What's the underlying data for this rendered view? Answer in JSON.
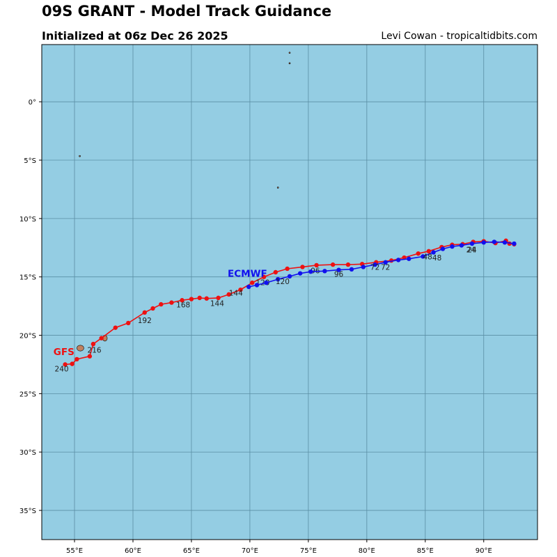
{
  "header": {
    "title": "09S GRANT - Model Track Guidance",
    "subtitle": "Initialized at 06z Dec 26 2025",
    "credit": "Levi Cowan - tropicaltidbits.com"
  },
  "colors": {
    "ocean": "#94cde3",
    "land": "#c08060",
    "grid": "#5a8ea4",
    "gfs": "#ee1111",
    "ecmwf": "#1111ee"
  },
  "map": {
    "lon_range": [
      52.2,
      94.6
    ],
    "lat_range": [
      -37.5,
      4.9
    ],
    "lon_ticks": [
      {
        "value": 55,
        "label": "55°E"
      },
      {
        "value": 60,
        "label": "60°E"
      },
      {
        "value": 65,
        "label": "65°E"
      },
      {
        "value": 70,
        "label": "70°E"
      },
      {
        "value": 75,
        "label": "75°E"
      },
      {
        "value": 80,
        "label": "80°E"
      },
      {
        "value": 85,
        "label": "85°E"
      },
      {
        "value": 90,
        "label": "90°E"
      }
    ],
    "lat_ticks": [
      {
        "value": 0,
        "label": "0°"
      },
      {
        "value": -5,
        "label": "5°S"
      },
      {
        "value": -10,
        "label": "10°S"
      },
      {
        "value": -15,
        "label": "15°S"
      },
      {
        "value": -20,
        "label": "20°S"
      },
      {
        "value": -25,
        "label": "25°S"
      },
      {
        "value": -30,
        "label": "30°S"
      },
      {
        "value": -35,
        "label": "35°S"
      }
    ],
    "islands": [
      {
        "name": "reunion",
        "lon": 55.5,
        "lat": -21.1,
        "rx": 0.3,
        "ry": 0.25
      },
      {
        "name": "mauritius",
        "lon": 57.6,
        "lat": -20.25,
        "rx": 0.2,
        "ry": 0.25
      },
      {
        "name": "seychelles",
        "lon": 55.45,
        "lat": -4.65,
        "rx": 0.06,
        "ry": 0.06
      },
      {
        "name": "chagos",
        "lon": 72.4,
        "lat": -7.35,
        "rx": 0.06,
        "ry": 0.06
      },
      {
        "name": "maldives-a",
        "lon": 73.4,
        "lat": 4.2,
        "rx": 0.03,
        "ry": 0.05
      },
      {
        "name": "maldives-b",
        "lon": 73.4,
        "lat": 3.3,
        "rx": 0.03,
        "ry": 0.05
      }
    ]
  },
  "chart_data": {
    "type": "line",
    "series": [
      {
        "name": "GFS",
        "label_pos": {
          "lon": 53.2,
          "lat": -21.7
        },
        "points": [
          [
            92.6,
            -12.2
          ],
          [
            92.2,
            -12.15
          ],
          [
            91.9,
            -11.9
          ],
          [
            91.0,
            -12.1
          ],
          [
            90.0,
            -11.95
          ],
          [
            89.1,
            -12.0
          ],
          [
            88.2,
            -12.2
          ],
          [
            87.3,
            -12.25
          ],
          [
            86.4,
            -12.45
          ],
          [
            85.3,
            -12.8
          ],
          [
            84.4,
            -13.0
          ],
          [
            83.2,
            -13.35
          ],
          [
            82.1,
            -13.6
          ],
          [
            80.8,
            -13.75
          ],
          [
            79.6,
            -13.9
          ],
          [
            78.4,
            -13.95
          ],
          [
            77.1,
            -13.95
          ],
          [
            75.7,
            -14.0
          ],
          [
            74.5,
            -14.15
          ],
          [
            73.2,
            -14.3
          ],
          [
            72.2,
            -14.6
          ],
          [
            71.2,
            -15.0
          ],
          [
            70.2,
            -15.5
          ],
          [
            69.2,
            -16.1
          ],
          [
            68.2,
            -16.5
          ],
          [
            67.3,
            -16.8
          ],
          [
            66.3,
            -16.85
          ],
          [
            65.7,
            -16.8
          ],
          [
            65.0,
            -16.9
          ],
          [
            64.2,
            -17.0
          ],
          [
            63.3,
            -17.2
          ],
          [
            62.4,
            -17.35
          ],
          [
            61.7,
            -17.7
          ],
          [
            61.0,
            -18.05
          ],
          [
            59.6,
            -18.95
          ],
          [
            58.5,
            -19.35
          ],
          [
            57.3,
            -20.25
          ],
          [
            56.6,
            -20.75
          ],
          [
            56.3,
            -21.8
          ],
          [
            55.2,
            -22.05
          ],
          [
            54.8,
            -22.45
          ],
          [
            54.2,
            -22.5
          ]
        ],
        "labels": [
          {
            "text": "24",
            "lon": 89.0,
            "lat": -12.9
          },
          {
            "text": "48",
            "lon": 86.0,
            "lat": -13.6
          },
          {
            "text": "72",
            "lon": 81.6,
            "lat": -14.4
          },
          {
            "text": "96",
            "lon": 75.6,
            "lat": -14.7
          },
          {
            "text": "120",
            "lon": 71.1,
            "lat": -15.7
          },
          {
            "text": "144",
            "lon": 68.8,
            "lat": -16.6
          },
          {
            "text": "168",
            "lon": 64.3,
            "lat": -17.6
          },
          {
            "text": "192",
            "lon": 61.0,
            "lat": -18.95
          },
          {
            "text": "216",
            "lon": 56.7,
            "lat": -21.5
          },
          {
            "text": "240",
            "lon": 53.9,
            "lat": -23.1
          }
        ]
      },
      {
        "name": "ECMWF",
        "label_pos": {
          "lon": 68.1,
          "lat": -15.0
        },
        "points": [
          [
            92.6,
            -12.15
          ],
          [
            91.8,
            -12.05
          ],
          [
            90.9,
            -12.0
          ],
          [
            90.0,
            -12.05
          ],
          [
            89.0,
            -12.15
          ],
          [
            88.1,
            -12.3
          ],
          [
            87.3,
            -12.4
          ],
          [
            86.5,
            -12.6
          ],
          [
            85.7,
            -12.9
          ],
          [
            84.8,
            -13.25
          ],
          [
            83.6,
            -13.45
          ],
          [
            82.7,
            -13.55
          ],
          [
            81.6,
            -13.75
          ],
          [
            80.7,
            -13.95
          ],
          [
            79.7,
            -14.15
          ],
          [
            78.7,
            -14.35
          ],
          [
            77.6,
            -14.4
          ],
          [
            76.4,
            -14.5
          ],
          [
            75.2,
            -14.55
          ],
          [
            74.3,
            -14.7
          ],
          [
            73.4,
            -14.95
          ],
          [
            72.4,
            -15.2
          ],
          [
            71.4,
            -15.5
          ],
          [
            70.6,
            -15.7
          ],
          [
            69.9,
            -15.85
          ]
        ],
        "labels": [
          {
            "text": "24",
            "lon": 88.9,
            "lat": -12.9
          },
          {
            "text": "48",
            "lon": 85.2,
            "lat": -13.5
          },
          {
            "text": "72",
            "lon": 80.7,
            "lat": -14.4
          },
          {
            "text": "96",
            "lon": 77.6,
            "lat": -15.0
          },
          {
            "text": "120",
            "lon": 72.8,
            "lat": -15.6
          },
          {
            "text": "144",
            "lon": 67.2,
            "lat": -17.5
          }
        ]
      }
    ]
  }
}
